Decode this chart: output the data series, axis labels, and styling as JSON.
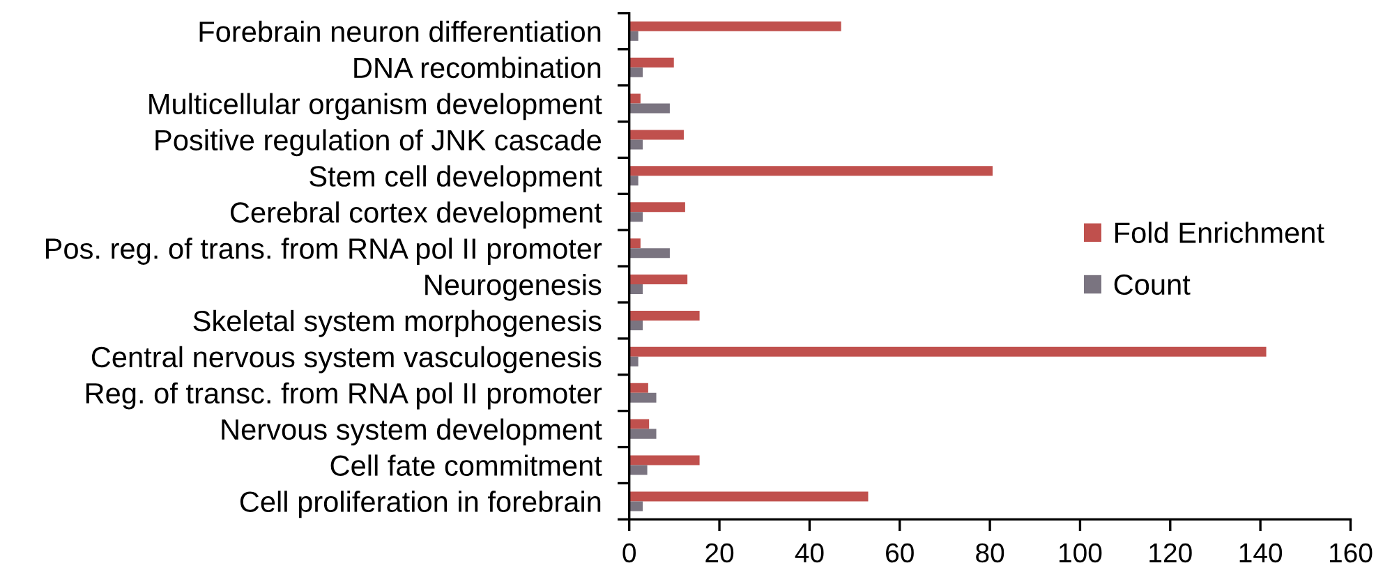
{
  "chart_data": {
    "type": "bar",
    "orientation": "horizontal",
    "categories": [
      "Forebrain neuron differentiation",
      "DNA recombination",
      "Multicellular organism development",
      "Positive regulation of JNK cascade",
      "Stem cell development",
      "Cerebral cortex development",
      "Pos. reg. of trans. from RNA pol II promoter",
      "Neurogenesis",
      "Skeletal system morphogenesis",
      "Central nervous system vasculogenesis",
      "Reg. of transc. from RNA pol II promoter",
      "Nervous system development",
      "Cell fate commitment",
      "Cell proliferation in forebrain"
    ],
    "series": [
      {
        "name": "Fold Enrichment",
        "color": "#c0504d",
        "values": [
          47.0,
          9.9,
          2.5,
          12.1,
          80.6,
          12.4,
          2.5,
          12.9,
          15.6,
          141.3,
          4.2,
          4.4,
          15.6,
          53.0
        ]
      },
      {
        "name": "Count",
        "color": "#7a7480",
        "values": [
          2,
          3,
          9,
          3,
          2,
          3,
          9,
          3,
          3,
          2,
          6,
          6,
          4,
          3
        ]
      }
    ],
    "xlim": [
      0,
      160
    ],
    "xticks": [
      0,
      20,
      40,
      60,
      80,
      100,
      120,
      140,
      160
    ],
    "legend": "right"
  }
}
